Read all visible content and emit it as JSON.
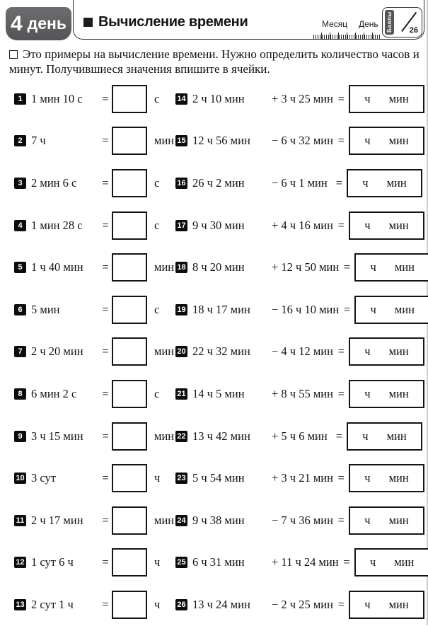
{
  "header": {
    "day_tab": {
      "number": "4",
      "label": "день"
    },
    "title": "Вычисление времени",
    "month_label": "Месяц",
    "day_label": "День",
    "score_badge": {
      "label": "Баллы",
      "max": "26"
    }
  },
  "instructions": "Это примеры на вычисление времени. Нужно определить количество часов и минут. Получившиеся значения впишите в ячейки.",
  "symbols": {
    "equals": "="
  },
  "box_units": {
    "hours": "ч",
    "minutes": "мин"
  },
  "left_problems": [
    {
      "num": "1",
      "expr": "1 мин 10 с",
      "unit": "с"
    },
    {
      "num": "2",
      "expr": "7 ч",
      "unit": "мин"
    },
    {
      "num": "3",
      "expr": "2 мин 6 с",
      "unit": "с"
    },
    {
      "num": "4",
      "expr": "1 мин 28 с",
      "unit": "с"
    },
    {
      "num": "5",
      "expr": "1 ч 40 мин",
      "unit": "мин"
    },
    {
      "num": "6",
      "expr": "5 мин",
      "unit": "с"
    },
    {
      "num": "7",
      "expr": "2 ч 20 мин",
      "unit": "мин"
    },
    {
      "num": "8",
      "expr": "6 мин 2 с",
      "unit": "с"
    },
    {
      "num": "9",
      "expr": "3 ч 15 мин",
      "unit": "мин"
    },
    {
      "num": "10",
      "expr": "3 сут",
      "unit": "ч"
    },
    {
      "num": "11",
      "expr": "2 ч 17 мин",
      "unit": "мин"
    },
    {
      "num": "12",
      "expr": "1 сут 6 ч",
      "unit": "ч"
    },
    {
      "num": "13",
      "expr": "2 сут 1 ч",
      "unit": "ч"
    }
  ],
  "right_problems": [
    {
      "num": "14",
      "first": "2 ч 10 мин",
      "second": "+ 3 ч 25 мин"
    },
    {
      "num": "15",
      "first": "12 ч 56 мин",
      "second": "− 6 ч 32 мин"
    },
    {
      "num": "16",
      "first": "26 ч 2 мин",
      "second": "− 6 ч 1 мин"
    },
    {
      "num": "17",
      "first": "9 ч 30 мин",
      "second": "+ 4 ч 16 мин"
    },
    {
      "num": "18",
      "first": "8 ч 20 мин",
      "second": "+ 12 ч 50 мин"
    },
    {
      "num": "19",
      "first": "18 ч 17 мин",
      "second": "− 16 ч 10 мин"
    },
    {
      "num": "20",
      "first": "22 ч 32 мин",
      "second": "− 4 ч 12 мин"
    },
    {
      "num": "21",
      "first": "14 ч 5 мин",
      "second": "+ 8 ч 55 мин"
    },
    {
      "num": "22",
      "first": "13 ч 42 мин",
      "second": "+ 5 ч 6 мин"
    },
    {
      "num": "23",
      "first": "5 ч 54 мин",
      "second": "+ 3 ч 21 мин"
    },
    {
      "num": "24",
      "first": "9 ч 38 мин",
      "second": "− 7 ч 36 мин"
    },
    {
      "num": "25",
      "first": "6 ч 31 мин",
      "second": "+ 11 ч 24 мин"
    },
    {
      "num": "26",
      "first": "13 ч 24 мин",
      "second": "− 2 ч 25 мин"
    }
  ]
}
